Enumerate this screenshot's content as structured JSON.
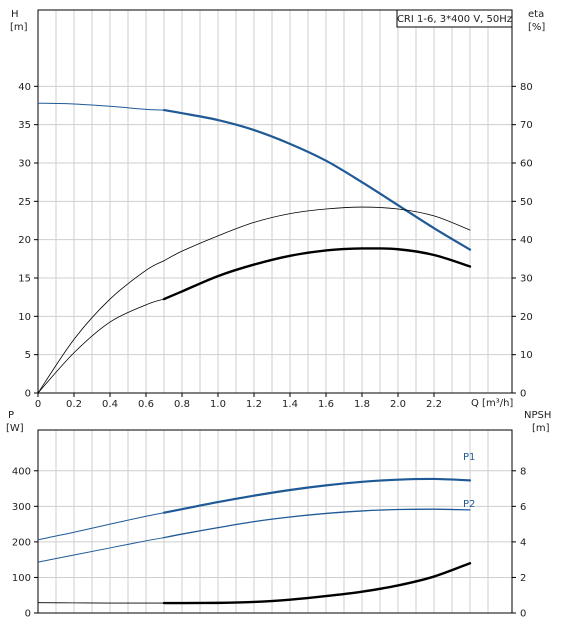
{
  "chart_data": [
    {
      "type": "line",
      "title": "CRI 1-6, 3*400 V, 50Hz",
      "left_axis": {
        "label_line1": "H",
        "label_line2": "[m]",
        "range": [
          0,
          45
        ],
        "ticks": [
          0,
          5,
          10,
          15,
          20,
          25,
          30,
          35,
          40
        ]
      },
      "right_axis": {
        "label_line1": "eta",
        "label_line2": "[%]",
        "range": [
          0,
          90
        ],
        "ticks": [
          0,
          10,
          20,
          30,
          40,
          50,
          60,
          70,
          80
        ]
      },
      "x_axis": {
        "label": "Q [m³/h]",
        "range": [
          0,
          2.6
        ],
        "grid_step": 0.1,
        "tick_labels": [
          {
            "value": 0,
            "text": "0"
          },
          {
            "value": 0.2,
            "text": "0.2"
          },
          {
            "value": 0.4,
            "text": "0.4"
          },
          {
            "value": 0.6,
            "text": "0.6"
          },
          {
            "value": 0.8,
            "text": "0.8"
          },
          {
            "value": 1.0,
            "text": "1.0"
          },
          {
            "value": 1.2,
            "text": "1.2"
          },
          {
            "value": 1.4,
            "text": "1.4"
          },
          {
            "value": 1.6,
            "text": "1.6"
          },
          {
            "value": 1.8,
            "text": "1.8"
          },
          {
            "value": 2.0,
            "text": "2.0"
          },
          {
            "value": 2.2,
            "text": "2.2"
          }
        ]
      },
      "grid": true,
      "series": [
        {
          "axis": "left",
          "color": "#1f5a96",
          "thin_width": 1,
          "thick_width": 2.2,
          "thick_from": 0.7,
          "x": [
            0,
            0.2,
            0.4,
            0.6,
            0.7,
            0.8,
            1.0,
            1.2,
            1.4,
            1.6,
            1.8,
            2.0,
            2.2,
            2.4
          ],
          "values": [
            37.8,
            37.7,
            37.4,
            37.0,
            36.9,
            36.5,
            35.6,
            34.3,
            32.5,
            30.3,
            27.5,
            24.5,
            21.5,
            18.7
          ]
        },
        {
          "axis": "right",
          "color": "#000000",
          "thin_width": 0.8,
          "thick_width": 0.8,
          "thick_from": 0.7,
          "x": [
            0,
            0.2,
            0.4,
            0.6,
            0.7,
            0.8,
            1.0,
            1.2,
            1.4,
            1.6,
            1.8,
            2.0,
            2.2,
            2.4
          ],
          "values": [
            0,
            14,
            24.5,
            32,
            34.5,
            37,
            41,
            44.5,
            46.8,
            48,
            48.5,
            48,
            46.2,
            42.5
          ]
        },
        {
          "axis": "right",
          "color": "#000000",
          "thin_width": 0.8,
          "thick_width": 2.4,
          "thick_from": 0.7,
          "x": [
            0,
            0.2,
            0.4,
            0.6,
            0.7,
            0.8,
            1.0,
            1.2,
            1.4,
            1.6,
            1.8,
            2.0,
            2.2,
            2.4
          ],
          "values": [
            0,
            10.5,
            18.5,
            23,
            24.5,
            26.5,
            30.5,
            33.5,
            35.8,
            37.2,
            37.7,
            37.5,
            36,
            33
          ]
        }
      ]
    },
    {
      "type": "line",
      "left_axis": {
        "label_line1": "P",
        "label_line2": "[W]",
        "range": [
          0,
          450
        ],
        "ticks": [
          0,
          100,
          200,
          300,
          400
        ]
      },
      "right_axis": {
        "label_line1": "NPSH",
        "label_line2": "[m]",
        "range": [
          0,
          9
        ],
        "ticks": [
          0,
          2,
          4,
          6,
          8
        ]
      },
      "x_axis": {
        "range": [
          0,
          2.6
        ],
        "grid_step": 0.1
      },
      "grid": true,
      "series": [
        {
          "name": "P1",
          "axis": "left",
          "color": "#1f5a96",
          "thin_width": 1,
          "thick_width": 2.2,
          "thick_from": 0.7,
          "x": [
            0,
            0.2,
            0.4,
            0.6,
            0.7,
            0.8,
            1.0,
            1.2,
            1.4,
            1.6,
            1.8,
            2.0,
            2.2,
            2.4
          ],
          "values": [
            206,
            227,
            250,
            272,
            282,
            292,
            312,
            330,
            346,
            359,
            369,
            375,
            377,
            373
          ]
        },
        {
          "name": "P2",
          "axis": "left",
          "color": "#1f5a96",
          "thin_width": 1,
          "thick_width": 1.3,
          "thick_from": 0.7,
          "x": [
            0,
            0.2,
            0.4,
            0.6,
            0.7,
            0.8,
            1.0,
            1.2,
            1.4,
            1.6,
            1.8,
            2.0,
            2.2,
            2.4
          ],
          "values": [
            143,
            163,
            183,
            203,
            212,
            222,
            240,
            257,
            270,
            280,
            287,
            291,
            292,
            290
          ]
        },
        {
          "axis": "right",
          "color": "#000000",
          "thin_width": 0.8,
          "thick_width": 2.4,
          "thick_from": 0.7,
          "x": [
            0,
            0.2,
            0.4,
            0.6,
            0.7,
            0.8,
            1.0,
            1.2,
            1.4,
            1.6,
            1.8,
            2.0,
            2.2,
            2.4
          ],
          "values": [
            0.58,
            0.57,
            0.56,
            0.56,
            0.56,
            0.56,
            0.57,
            0.62,
            0.75,
            0.95,
            1.2,
            1.55,
            2.05,
            2.8
          ]
        }
      ]
    }
  ]
}
